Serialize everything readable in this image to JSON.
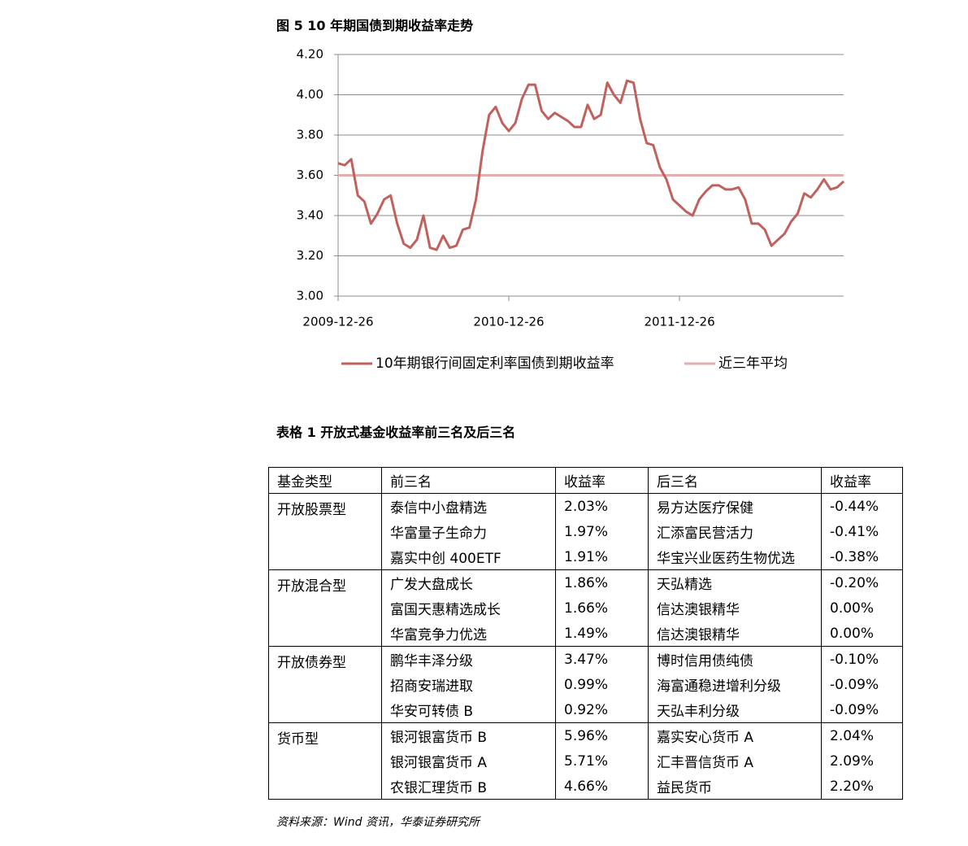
{
  "figure_title": "图 5    10 年期国债到期收益率走势",
  "chart_data": {
    "type": "line",
    "categories": [
      "2009-12-26",
      null,
      null,
      null,
      null,
      null,
      null,
      null,
      null,
      null,
      null,
      null,
      null,
      null,
      null,
      null,
      null,
      null,
      null,
      null,
      null,
      null,
      null,
      null,
      null,
      null,
      "2010-12-26",
      null,
      null,
      null,
      null,
      null,
      null,
      null,
      null,
      null,
      null,
      null,
      null,
      null,
      null,
      null,
      null,
      null,
      null,
      null,
      null,
      null,
      null,
      null,
      null,
      null,
      "2011-12-26",
      null,
      null,
      null,
      null,
      null,
      null,
      null,
      null,
      null,
      null,
      null,
      null,
      null,
      null,
      null,
      null,
      null,
      null,
      null,
      null,
      null,
      null,
      null,
      null,
      null
    ],
    "series": [
      {
        "name": "10年期银行间固定利率国债到期收益率",
        "color": "#c0615e",
        "values": [
          3.66,
          3.65,
          3.68,
          3.5,
          3.47,
          3.36,
          3.41,
          3.48,
          3.5,
          3.36,
          3.26,
          3.24,
          3.28,
          3.4,
          3.24,
          3.23,
          3.3,
          3.24,
          3.25,
          3.33,
          3.34,
          3.48,
          3.72,
          3.9,
          3.94,
          3.86,
          3.82,
          3.86,
          3.98,
          4.05,
          4.05,
          3.92,
          3.88,
          3.91,
          3.89,
          3.87,
          3.84,
          3.84,
          3.95,
          3.88,
          3.9,
          4.06,
          4.0,
          3.96,
          4.07,
          4.06,
          3.88,
          3.76,
          3.75,
          3.64,
          3.58,
          3.48,
          3.45,
          3.42,
          3.4,
          3.48,
          3.52,
          3.55,
          3.55,
          3.53,
          3.53,
          3.54,
          3.48,
          3.36,
          3.36,
          3.33,
          3.25,
          3.28,
          3.31,
          3.37,
          3.41,
          3.51,
          3.49,
          3.53,
          3.58,
          3.53,
          3.54,
          3.57
        ]
      },
      {
        "name": "近三年平均",
        "color": "#e2aeae",
        "values": [
          3.6,
          3.6,
          3.6,
          3.6,
          3.6,
          3.6,
          3.6,
          3.6,
          3.6,
          3.6,
          3.6,
          3.6,
          3.6,
          3.6,
          3.6,
          3.6,
          3.6,
          3.6,
          3.6,
          3.6,
          3.6,
          3.6,
          3.6,
          3.6,
          3.6,
          3.6,
          3.6,
          3.6,
          3.6,
          3.6,
          3.6,
          3.6,
          3.6,
          3.6,
          3.6,
          3.6,
          3.6,
          3.6,
          3.6,
          3.6,
          3.6,
          3.6,
          3.6,
          3.6,
          3.6,
          3.6,
          3.6,
          3.6,
          3.6,
          3.6,
          3.6,
          3.6,
          3.6,
          3.6,
          3.6,
          3.6,
          3.6,
          3.6,
          3.6,
          3.6,
          3.6,
          3.6,
          3.6,
          3.6,
          3.6,
          3.6,
          3.6,
          3.6,
          3.6,
          3.6,
          3.6,
          3.6,
          3.6,
          3.6,
          3.6,
          3.6,
          3.6,
          3.6
        ]
      }
    ],
    "ylim": [
      3,
      4.2
    ],
    "yticks": [
      {
        "value": 3,
        "label": "3.00"
      },
      {
        "value": 3.2,
        "label": "3.20"
      },
      {
        "value": 3.4,
        "label": "3.40"
      },
      {
        "value": 3.6,
        "label": "3.60"
      },
      {
        "value": 3.8,
        "label": "3.80"
      },
      {
        "value": 4,
        "label": "4.00"
      },
      {
        "value": 4.2,
        "label": "4.20"
      }
    ],
    "grid": true,
    "legend": "bottom"
  },
  "table_title": "表格 1  开放式基金收益率前三名及后三名",
  "table": {
    "header": [
      "基金类型",
      "前三名",
      "收益率",
      "后三名",
      "收益率"
    ],
    "groups": [
      {
        "type": "开放股票型",
        "rows": [
          [
            "泰信中小盘精选",
            "2.03%",
            "易方达医疗保健",
            "-0.44%"
          ],
          [
            "华富量子生命力",
            "1.97%",
            "汇添富民营活力",
            "-0.41%"
          ],
          [
            "嘉实中创 400ETF",
            "1.91%",
            "华宝兴业医药生物优选",
            "-0.38%"
          ]
        ]
      },
      {
        "type": "开放混合型",
        "rows": [
          [
            "广发大盘成长",
            "1.86%",
            "天弘精选",
            "-0.20%"
          ],
          [
            "富国天惠精选成长",
            "1.66%",
            "信达澳银精华",
            "0.00%"
          ],
          [
            "华富竞争力优选",
            "1.49%",
            "信达澳银精华",
            "0.00%"
          ]
        ]
      },
      {
        "type": "开放债券型",
        "rows": [
          [
            "鹏华丰泽分级",
            "3.47%",
            "博时信用债纯债",
            "-0.10%"
          ],
          [
            "招商安瑞进取",
            "0.99%",
            "海富通稳进增利分级",
            "-0.09%"
          ],
          [
            "华安可转债 B",
            "0.92%",
            "天弘丰利分级",
            "-0.09%"
          ]
        ]
      },
      {
        "type": "货币型",
        "rows": [
          [
            "银河银富货币 B",
            "5.96%",
            "嘉实安心货币 A",
            "2.04%"
          ],
          [
            "银河银富货币 A",
            "5.71%",
            "汇丰晋信货币 A",
            "2.09%"
          ],
          [
            "农银汇理货币 B",
            "4.66%",
            "益民货币",
            "2.20%"
          ]
        ]
      }
    ]
  },
  "source": "资料来源：Wind 资讯，华泰证券研究所"
}
